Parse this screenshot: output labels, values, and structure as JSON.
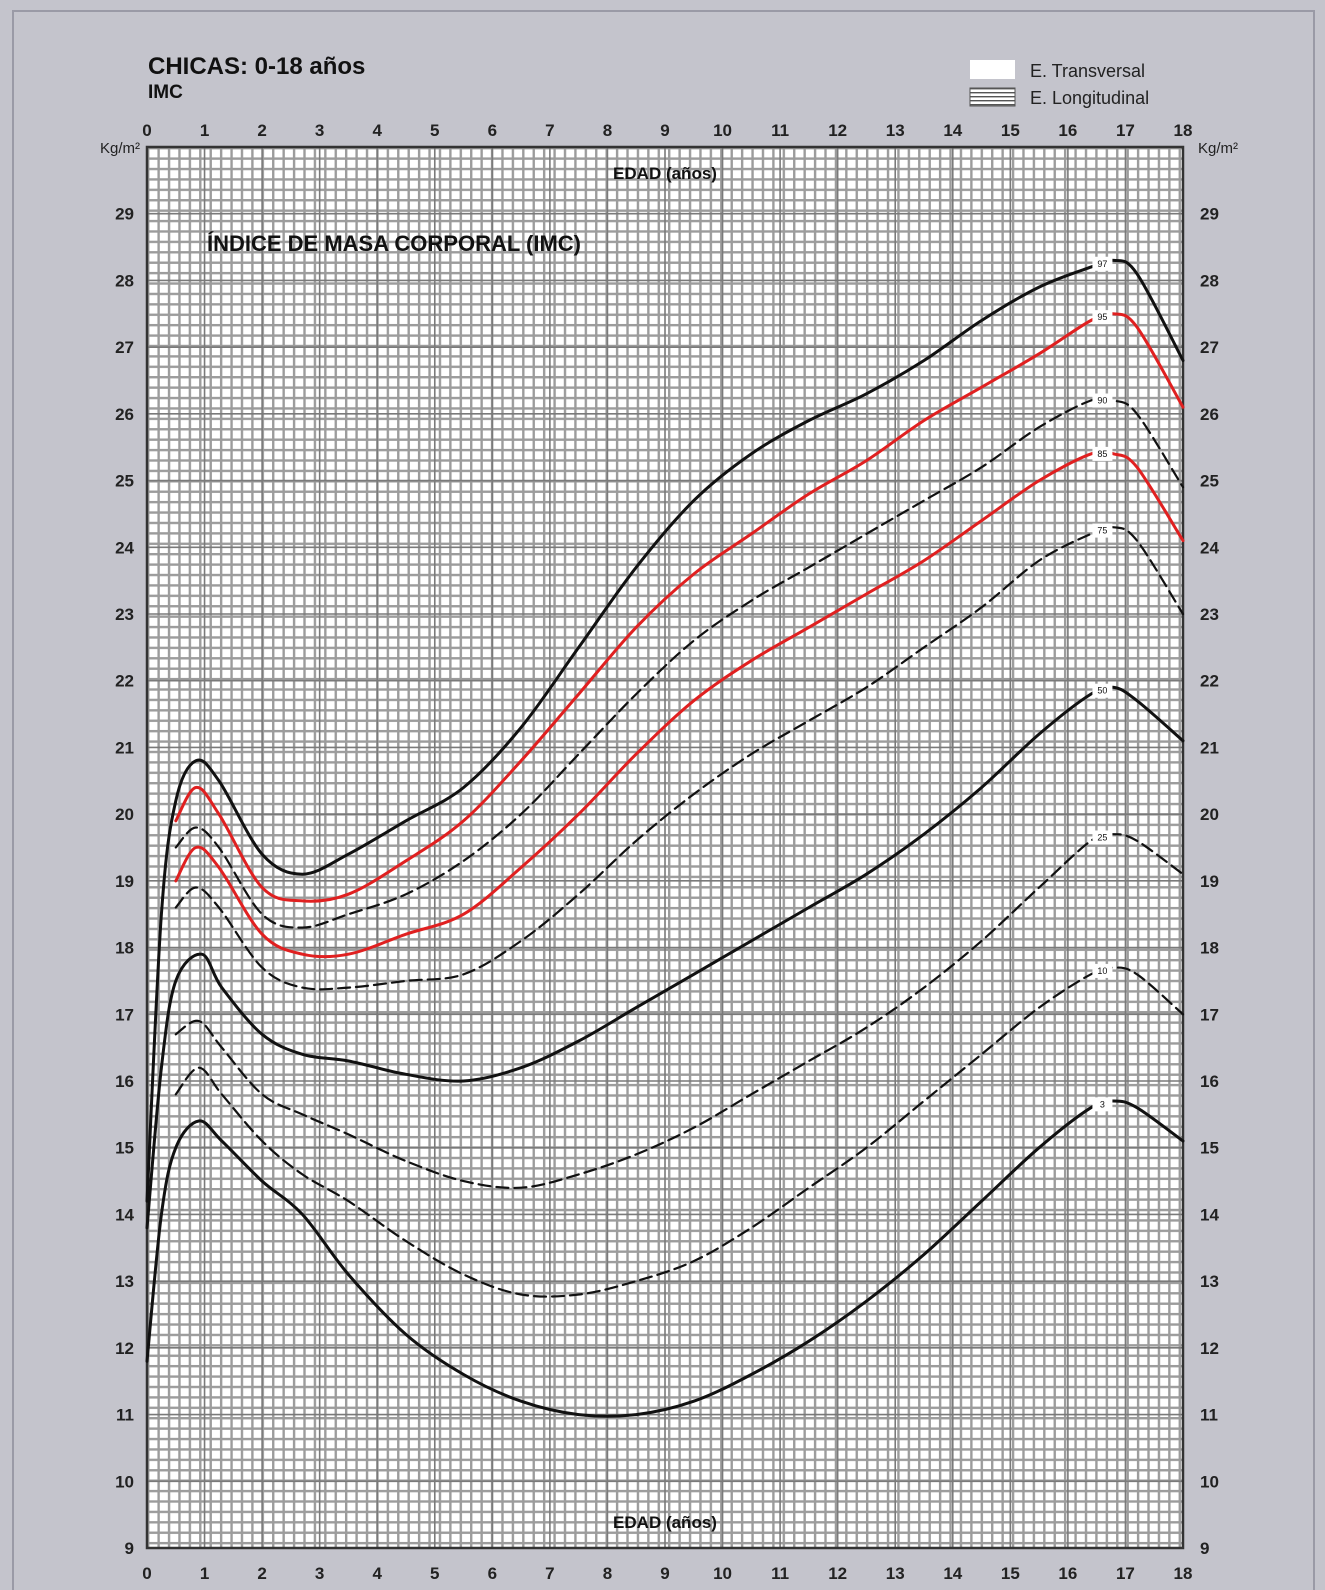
{
  "chart_data": {
    "type": "line",
    "title": "CHICAS: 0-18 años",
    "subtitle": "IMC",
    "inner_title": "ÍNDICE DE MASA CORPORAL (IMC)",
    "xlabel": "EDAD (años)",
    "ylabel": "Kg/m²",
    "xlim": [
      0,
      18
    ],
    "ylim": [
      9,
      30
    ],
    "x_ticks": [
      0,
      1,
      2,
      3,
      4,
      5,
      6,
      7,
      8,
      9,
      10,
      11,
      12,
      13,
      14,
      15,
      16,
      17,
      18
    ],
    "y_ticks": [
      9,
      10,
      11,
      12,
      13,
      14,
      15,
      16,
      17,
      18,
      19,
      20,
      21,
      22,
      23,
      24,
      25,
      26,
      27,
      28,
      29
    ],
    "grid": true,
    "legend": {
      "position": "top-right",
      "entries": [
        {
          "label": "E. Transversal",
          "style": "white-band"
        },
        {
          "label": "E. Longitudinal",
          "style": "hatched-band"
        }
      ]
    },
    "series": [
      {
        "name": "97",
        "style": "solid-black",
        "color": "#111111",
        "x": [
          0,
          0.25,
          0.5,
          0.85,
          1.25,
          2,
          2.7,
          3.5,
          4.5,
          5.5,
          6.5,
          7.5,
          8.5,
          9.5,
          10.5,
          11.5,
          12.5,
          13.5,
          14.5,
          15.5,
          16.4,
          16.8,
          17.2,
          18
        ],
        "y": [
          14.2,
          18.5,
          20.2,
          20.8,
          20.5,
          19.4,
          19.1,
          19.4,
          19.9,
          20.4,
          21.3,
          22.5,
          23.7,
          24.7,
          25.4,
          25.9,
          26.3,
          26.8,
          27.4,
          27.9,
          28.2,
          28.3,
          28.1,
          26.8
        ]
      },
      {
        "name": "95",
        "style": "solid-red",
        "color": "#e02020",
        "x": [
          0.5,
          0.85,
          1.25,
          2,
          2.7,
          3.5,
          4.5,
          5.5,
          6.5,
          7.5,
          8.5,
          9.5,
          10.5,
          11.5,
          12.5,
          13.5,
          14.5,
          15.5,
          16.4,
          16.8,
          17.2,
          18
        ],
        "y": [
          19.9,
          20.4,
          20.0,
          18.9,
          18.7,
          18.8,
          19.3,
          19.9,
          20.8,
          21.8,
          22.8,
          23.6,
          24.2,
          24.8,
          25.3,
          25.9,
          26.4,
          26.9,
          27.4,
          27.5,
          27.3,
          26.1
        ]
      },
      {
        "name": "90",
        "style": "dashed-black",
        "color": "#111111",
        "x": [
          0.5,
          0.85,
          1.25,
          2,
          2.7,
          3.5,
          4.5,
          5.5,
          6.5,
          7.5,
          8.5,
          9.5,
          10.5,
          11.5,
          12.5,
          13.5,
          14.5,
          15.5,
          16.4,
          16.8,
          17.2,
          18
        ],
        "y": [
          19.5,
          19.8,
          19.5,
          18.5,
          18.3,
          18.5,
          18.8,
          19.3,
          20.0,
          20.9,
          21.8,
          22.6,
          23.2,
          23.7,
          24.2,
          24.7,
          25.2,
          25.8,
          26.2,
          26.2,
          26.0,
          24.9
        ]
      },
      {
        "name": "85",
        "style": "solid-red",
        "color": "#e02020",
        "x": [
          0.5,
          0.85,
          1.25,
          2,
          2.7,
          3.5,
          4.5,
          5.5,
          6.5,
          7.5,
          8.5,
          9.5,
          10.5,
          11.5,
          12.5,
          13.5,
          14.5,
          15.5,
          16.4,
          16.8,
          17.2,
          18
        ],
        "y": [
          19.0,
          19.5,
          19.2,
          18.2,
          17.9,
          17.9,
          18.2,
          18.5,
          19.2,
          20.0,
          20.9,
          21.7,
          22.3,
          22.8,
          23.3,
          23.8,
          24.4,
          25.0,
          25.4,
          25.4,
          25.2,
          24.1
        ]
      },
      {
        "name": "75",
        "style": "dashed-black",
        "color": "#111111",
        "x": [
          0.5,
          0.85,
          1.25,
          2,
          2.7,
          3.5,
          4.5,
          5.5,
          6.5,
          7.5,
          8.5,
          9.5,
          10.5,
          11.5,
          12.5,
          13.5,
          14.5,
          15.5,
          16.4,
          16.8,
          17.2,
          18
        ],
        "y": [
          18.6,
          18.9,
          18.6,
          17.7,
          17.4,
          17.4,
          17.5,
          17.6,
          18.1,
          18.8,
          19.6,
          20.3,
          20.9,
          21.4,
          21.9,
          22.5,
          23.1,
          23.8,
          24.2,
          24.3,
          24.1,
          23.0
        ]
      },
      {
        "name": "50",
        "style": "solid-black",
        "color": "#111111",
        "x": [
          0,
          0.25,
          0.5,
          0.95,
          1.3,
          2,
          2.7,
          3.5,
          4.5,
          5.5,
          6.5,
          7.5,
          8.5,
          9.5,
          10.5,
          11.5,
          12.5,
          13.5,
          14.5,
          15.5,
          16.4,
          16.8,
          17.2,
          18
        ],
        "y": [
          13.8,
          16.2,
          17.5,
          17.9,
          17.4,
          16.7,
          16.4,
          16.3,
          16.1,
          16.0,
          16.2,
          16.6,
          17.1,
          17.6,
          18.1,
          18.6,
          19.1,
          19.7,
          20.4,
          21.2,
          21.8,
          21.9,
          21.7,
          21.1
        ]
      },
      {
        "name": "25",
        "style": "dashed-black",
        "color": "#111111",
        "x": [
          0.5,
          0.9,
          1.3,
          2,
          2.7,
          3.5,
          4.5,
          5.5,
          6.5,
          7.5,
          8.5,
          9.5,
          10.5,
          11.5,
          12.5,
          13.5,
          14.5,
          15.5,
          16.4,
          16.8,
          17.2,
          18
        ],
        "y": [
          16.7,
          16.9,
          16.5,
          15.8,
          15.5,
          15.2,
          14.8,
          14.5,
          14.4,
          14.6,
          14.9,
          15.3,
          15.8,
          16.3,
          16.8,
          17.4,
          18.1,
          18.9,
          19.6,
          19.7,
          19.6,
          19.1
        ]
      },
      {
        "name": "10",
        "style": "dashed-black",
        "color": "#111111",
        "x": [
          0.5,
          0.9,
          1.3,
          2,
          2.7,
          3.5,
          4.5,
          5.5,
          6.5,
          7.5,
          8.5,
          9.5,
          10.5,
          11.5,
          12.5,
          13.5,
          14.5,
          15.5,
          16.4,
          16.8,
          17.2,
          18
        ],
        "y": [
          15.8,
          16.2,
          15.8,
          15.1,
          14.6,
          14.2,
          13.6,
          13.1,
          12.8,
          12.8,
          13.0,
          13.3,
          13.8,
          14.4,
          15.0,
          15.7,
          16.4,
          17.1,
          17.6,
          17.7,
          17.6,
          17.0
        ]
      },
      {
        "name": "3",
        "style": "solid-black",
        "color": "#111111",
        "x": [
          0,
          0.25,
          0.5,
          0.9,
          1.3,
          2,
          2.7,
          3.5,
          4.5,
          5.5,
          6.5,
          7.5,
          8.5,
          9.5,
          10.5,
          11.5,
          12.5,
          13.5,
          14.5,
          15.5,
          16.4,
          16.8,
          17.2,
          18
        ],
        "y": [
          11.8,
          14.0,
          15.0,
          15.4,
          15.1,
          14.5,
          14.0,
          13.1,
          12.2,
          11.6,
          11.2,
          11.0,
          11.0,
          11.2,
          11.6,
          12.1,
          12.7,
          13.4,
          14.2,
          15.0,
          15.6,
          15.7,
          15.6,
          15.1
        ]
      }
    ]
  }
}
